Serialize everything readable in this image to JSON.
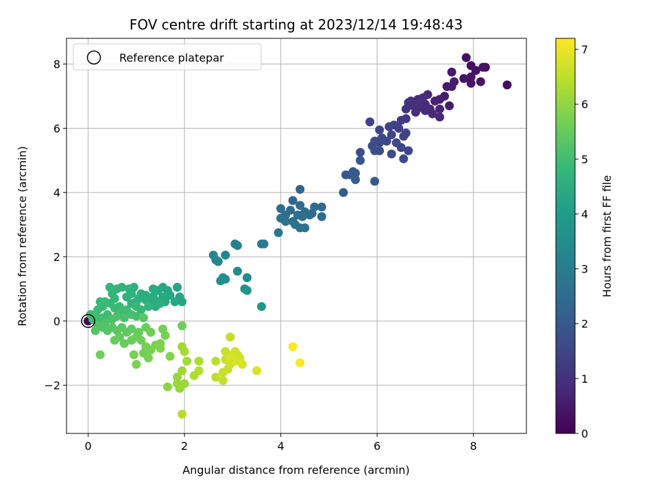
{
  "chart_data": {
    "type": "scatter",
    "title": "FOV centre drift starting at 2023/12/14 19:48:43",
    "xlabel": "Angular distance from reference (arcmin)",
    "ylabel": "Rotation from reference (arcmin)",
    "xlim": [
      -0.45,
      9.1
    ],
    "ylim": [
      -3.5,
      8.8
    ],
    "xticks": [
      0,
      2,
      4,
      6,
      8
    ],
    "yticks": [
      -2,
      0,
      2,
      4,
      6,
      8
    ],
    "ytick_labels": [
      "−2",
      "0",
      "2",
      "4",
      "6",
      "8"
    ],
    "grid": true,
    "legend": {
      "position": "top-left",
      "entries": [
        "Reference platepar"
      ]
    },
    "reference_point": {
      "x": 0,
      "y": 0,
      "label": "Reference platepar"
    },
    "colorbar": {
      "label": "Hours from first FF file",
      "colormap": "viridis",
      "range": [
        0,
        7.2
      ],
      "ticks": [
        0,
        1,
        2,
        3,
        4,
        5,
        6,
        7
      ]
    },
    "points": [
      [
        0.0,
        0.0,
        0.0
      ],
      [
        8.7,
        7.35,
        0.2
      ],
      [
        7.85,
        8.2,
        0.3
      ],
      [
        7.95,
        7.95,
        0.3
      ],
      [
        8.05,
        7.8,
        0.35
      ],
      [
        8.25,
        7.9,
        0.35
      ],
      [
        8.2,
        7.9,
        0.35
      ],
      [
        7.8,
        7.55,
        0.4
      ],
      [
        7.95,
        7.6,
        0.4
      ],
      [
        7.95,
        7.4,
        0.4
      ],
      [
        8.15,
        7.45,
        0.4
      ],
      [
        7.55,
        7.75,
        0.5
      ],
      [
        7.45,
        7.3,
        0.5
      ],
      [
        7.55,
        7.3,
        0.55
      ],
      [
        7.6,
        7.45,
        0.55
      ],
      [
        7.4,
        7.0,
        0.6
      ],
      [
        7.5,
        6.7,
        0.6
      ],
      [
        7.3,
        6.9,
        0.65
      ],
      [
        7.2,
        6.85,
        0.7
      ],
      [
        7.3,
        6.6,
        0.75
      ],
      [
        7.1,
        6.6,
        0.8
      ],
      [
        7.05,
        7.05,
        0.8
      ],
      [
        7.0,
        6.75,
        0.85
      ],
      [
        6.9,
        6.65,
        0.9
      ],
      [
        6.85,
        6.9,
        0.9
      ],
      [
        6.8,
        6.5,
        0.95
      ],
      [
        6.75,
        6.7,
        1.0
      ],
      [
        6.7,
        6.85,
        1.0
      ],
      [
        6.6,
        6.6,
        1.05
      ],
      [
        6.65,
        6.8,
        1.1
      ],
      [
        7.15,
        6.45,
        0.85
      ],
      [
        7.3,
        6.35,
        0.8
      ],
      [
        7.0,
        6.55,
        0.9
      ],
      [
        6.95,
        6.95,
        0.95
      ],
      [
        6.85,
        6.75,
        1.0
      ],
      [
        6.6,
        6.3,
        1.2
      ],
      [
        6.5,
        6.25,
        1.3
      ],
      [
        6.35,
        6.1,
        1.35
      ],
      [
        6.45,
        6.0,
        1.35
      ],
      [
        6.55,
        5.75,
        1.4
      ],
      [
        6.6,
        5.85,
        1.45
      ],
      [
        6.25,
        6.05,
        1.45
      ],
      [
        6.3,
        5.8,
        1.5
      ],
      [
        6.2,
        5.6,
        1.55
      ],
      [
        6.1,
        5.7,
        1.6
      ],
      [
        6.05,
        5.55,
        1.6
      ],
      [
        5.95,
        5.6,
        1.65
      ],
      [
        5.9,
        5.45,
        1.7
      ],
      [
        5.95,
        5.3,
        1.7
      ],
      [
        6.05,
        5.3,
        1.7
      ],
      [
        6.3,
        5.2,
        1.7
      ],
      [
        6.4,
        5.55,
        1.6
      ],
      [
        6.5,
        5.4,
        1.55
      ],
      [
        6.65,
        5.3,
        1.5
      ],
      [
        6.55,
        5.05,
        1.65
      ],
      [
        5.85,
        6.2,
        1.4
      ],
      [
        6.05,
        5.95,
        1.5
      ],
      [
        5.65,
        5.25,
        1.8
      ],
      [
        5.65,
        5.0,
        1.8
      ],
      [
        5.5,
        4.65,
        1.95
      ],
      [
        5.45,
        4.55,
        2.0
      ],
      [
        5.55,
        4.6,
        2.0
      ],
      [
        5.35,
        4.55,
        2.05
      ],
      [
        5.95,
        4.35,
        2.0
      ],
      [
        5.3,
        4.0,
        2.1
      ],
      [
        5.55,
        4.4,
        2.1
      ],
      [
        4.4,
        4.1,
        2.3
      ],
      [
        4.7,
        3.55,
        2.45
      ],
      [
        4.85,
        3.25,
        2.5
      ],
      [
        4.6,
        3.3,
        2.55
      ],
      [
        4.4,
        3.6,
        2.45
      ],
      [
        4.25,
        3.75,
        2.35
      ],
      [
        4.1,
        3.3,
        2.6
      ],
      [
        4.2,
        3.45,
        2.5
      ],
      [
        4.0,
        3.5,
        2.55
      ],
      [
        4.0,
        3.2,
        2.65
      ],
      [
        4.25,
        3.1,
        2.7
      ],
      [
        4.35,
        3.3,
        2.65
      ],
      [
        4.5,
        3.4,
        2.6
      ],
      [
        4.45,
        3.25,
        2.6
      ],
      [
        4.4,
        2.9,
        2.75
      ],
      [
        4.5,
        2.9,
        2.75
      ],
      [
        4.3,
        3.0,
        2.7
      ],
      [
        4.1,
        3.1,
        2.7
      ],
      [
        3.95,
        2.75,
        2.85
      ],
      [
        4.85,
        3.55,
        2.5
      ],
      [
        4.65,
        3.35,
        2.5
      ],
      [
        3.6,
        2.4,
        3.0
      ],
      [
        3.65,
        2.4,
        3.0
      ],
      [
        3.05,
        2.4,
        3.15
      ],
      [
        3.1,
        2.35,
        3.15
      ],
      [
        2.85,
        2.05,
        3.25
      ],
      [
        2.6,
        2.05,
        3.3
      ],
      [
        2.7,
        1.85,
        3.3
      ],
      [
        2.65,
        1.9,
        3.35
      ],
      [
        3.1,
        1.55,
        3.45
      ],
      [
        2.85,
        1.3,
        3.55
      ],
      [
        2.75,
        1.25,
        3.6
      ],
      [
        2.8,
        1.35,
        3.55
      ],
      [
        3.3,
        1.35,
        3.5
      ],
      [
        3.25,
        1.0,
        3.65
      ],
      [
        3.3,
        0.95,
        3.7
      ],
      [
        3.6,
        0.45,
        3.8
      ],
      [
        1.85,
        1.05,
        4.2
      ],
      [
        1.9,
        0.75,
        4.25
      ],
      [
        1.8,
        0.6,
        4.3
      ],
      [
        1.7,
        0.8,
        4.3
      ],
      [
        1.65,
        0.95,
        4.3
      ],
      [
        1.55,
        1.05,
        4.3
      ],
      [
        1.45,
        0.95,
        4.35
      ],
      [
        1.55,
        0.75,
        4.35
      ],
      [
        1.6,
        0.6,
        4.35
      ],
      [
        1.45,
        0.6,
        4.4
      ],
      [
        1.35,
        0.75,
        4.4
      ],
      [
        1.35,
        1.0,
        4.4
      ],
      [
        1.4,
        0.45,
        4.45
      ],
      [
        1.3,
        0.6,
        4.45
      ],
      [
        1.2,
        0.8,
        4.45
      ],
      [
        1.2,
        0.65,
        4.5
      ],
      [
        1.1,
        0.85,
        4.5
      ],
      [
        1.05,
        0.7,
        4.55
      ],
      [
        0.95,
        1.05,
        4.55
      ],
      [
        0.9,
        0.85,
        4.6
      ],
      [
        1.0,
        0.6,
        4.6
      ],
      [
        0.9,
        0.55,
        4.65
      ],
      [
        0.8,
        0.75,
        4.65
      ],
      [
        0.85,
        1.0,
        4.65
      ],
      [
        0.7,
        1.05,
        4.7
      ],
      [
        0.6,
        1.0,
        4.7
      ],
      [
        0.45,
        1.05,
        4.75
      ],
      [
        0.5,
        0.85,
        4.75
      ],
      [
        0.55,
        0.7,
        4.8
      ],
      [
        0.45,
        0.55,
        4.8
      ],
      [
        0.35,
        0.6,
        4.85
      ],
      [
        0.25,
        0.6,
        4.85
      ],
      [
        0.3,
        0.45,
        4.9
      ],
      [
        0.2,
        0.35,
        4.9
      ],
      [
        0.15,
        0.2,
        4.95
      ],
      [
        0.05,
        0.2,
        5.0
      ],
      [
        0.1,
        0.05,
        5.0
      ],
      [
        0.2,
        0.0,
        5.0
      ],
      [
        0.3,
        0.1,
        5.0
      ],
      [
        0.4,
        0.2,
        4.95
      ],
      [
        0.55,
        0.4,
        4.9
      ],
      [
        0.65,
        0.45,
        4.9
      ],
      [
        0.7,
        0.3,
        4.95
      ],
      [
        0.8,
        0.35,
        4.95
      ],
      [
        1.1,
        0.35,
        4.8
      ],
      [
        1.0,
        0.45,
        4.85
      ],
      [
        1.25,
        0.45,
        4.7
      ],
      [
        1.5,
        0.55,
        4.5
      ],
      [
        1.95,
        0.6,
        4.25
      ],
      [
        1.0,
        0.15,
        5.05
      ],
      [
        0.9,
        0.2,
        5.05
      ],
      [
        0.75,
        0.1,
        5.1
      ],
      [
        0.6,
        0.15,
        5.1
      ],
      [
        0.5,
        0.05,
        5.15
      ],
      [
        0.35,
        -0.05,
        5.15
      ],
      [
        0.3,
        -0.2,
        5.2
      ],
      [
        0.4,
        -0.3,
        5.25
      ],
      [
        0.2,
        -0.15,
        5.2
      ],
      [
        0.15,
        -0.3,
        5.25
      ],
      [
        0.5,
        -0.2,
        5.3
      ],
      [
        0.6,
        -0.3,
        5.35
      ],
      [
        0.7,
        -0.2,
        5.35
      ],
      [
        0.8,
        -0.35,
        5.4
      ],
      [
        0.9,
        -0.25,
        5.4
      ],
      [
        1.05,
        -0.35,
        5.45
      ],
      [
        0.65,
        -0.5,
        5.45
      ],
      [
        0.55,
        -0.6,
        5.5
      ],
      [
        0.75,
        -0.7,
        5.5
      ],
      [
        0.9,
        -0.6,
        5.55
      ],
      [
        1.0,
        -0.5,
        5.55
      ],
      [
        1.1,
        -0.6,
        5.6
      ],
      [
        1.2,
        -0.8,
        5.65
      ],
      [
        1.15,
        -1.0,
        5.65
      ],
      [
        1.25,
        -1.15,
        5.7
      ],
      [
        1.3,
        -0.9,
        5.7
      ],
      [
        1.4,
        -0.75,
        5.75
      ],
      [
        1.5,
        -0.7,
        5.75
      ],
      [
        1.5,
        -0.85,
        5.8
      ],
      [
        1.6,
        -0.45,
        5.7
      ],
      [
        1.55,
        -0.25,
        5.65
      ],
      [
        1.3,
        -0.35,
        5.6
      ],
      [
        1.2,
        -0.2,
        5.55
      ],
      [
        0.25,
        -1.05,
        5.6
      ],
      [
        0.95,
        -1.05,
        5.7
      ],
      [
        1.0,
        -1.35,
        5.75
      ],
      [
        1.7,
        -1.1,
        5.85
      ],
      [
        1.65,
        -2.05,
        5.95
      ],
      [
        1.85,
        -1.75,
        6.05
      ],
      [
        1.9,
        -2.1,
        6.05
      ],
      [
        1.85,
        -1.95,
        6.1
      ],
      [
        2.0,
        -1.95,
        6.1
      ],
      [
        1.95,
        -1.55,
        6.15
      ],
      [
        2.05,
        -1.25,
        6.2
      ],
      [
        1.95,
        -0.8,
        6.2
      ],
      [
        2.0,
        -0.95,
        6.25
      ],
      [
        2.2,
        -1.7,
        6.3
      ],
      [
        2.3,
        -1.25,
        6.3
      ],
      [
        2.3,
        -1.55,
        6.35
      ],
      [
        1.95,
        -2.9,
        6.4
      ],
      [
        2.65,
        -1.25,
        6.45
      ],
      [
        2.65,
        -1.75,
        6.5
      ],
      [
        2.8,
        -1.6,
        6.55
      ],
      [
        2.8,
        -1.85,
        6.55
      ],
      [
        2.9,
        -1.5,
        6.6
      ],
      [
        2.85,
        -1.2,
        6.6
      ],
      [
        2.95,
        -1.35,
        6.65
      ],
      [
        3.0,
        -1.05,
        6.65
      ],
      [
        2.85,
        -0.95,
        6.6
      ],
      [
        2.95,
        -0.5,
        6.55
      ],
      [
        3.05,
        -0.95,
        6.7
      ],
      [
        3.1,
        -1.05,
        6.7
      ],
      [
        3.15,
        -1.15,
        6.7
      ],
      [
        3.2,
        -1.35,
        6.75
      ],
      [
        3.05,
        -1.25,
        6.75
      ],
      [
        2.95,
        -1.15,
        6.75
      ],
      [
        3.5,
        -1.55,
        6.8
      ],
      [
        1.95,
        -0.15,
        5.6
      ],
      [
        1.15,
        0.1,
        5.3
      ],
      [
        4.25,
        -0.8,
        7.2
      ],
      [
        4.4,
        -1.3,
        7.2
      ]
    ]
  }
}
